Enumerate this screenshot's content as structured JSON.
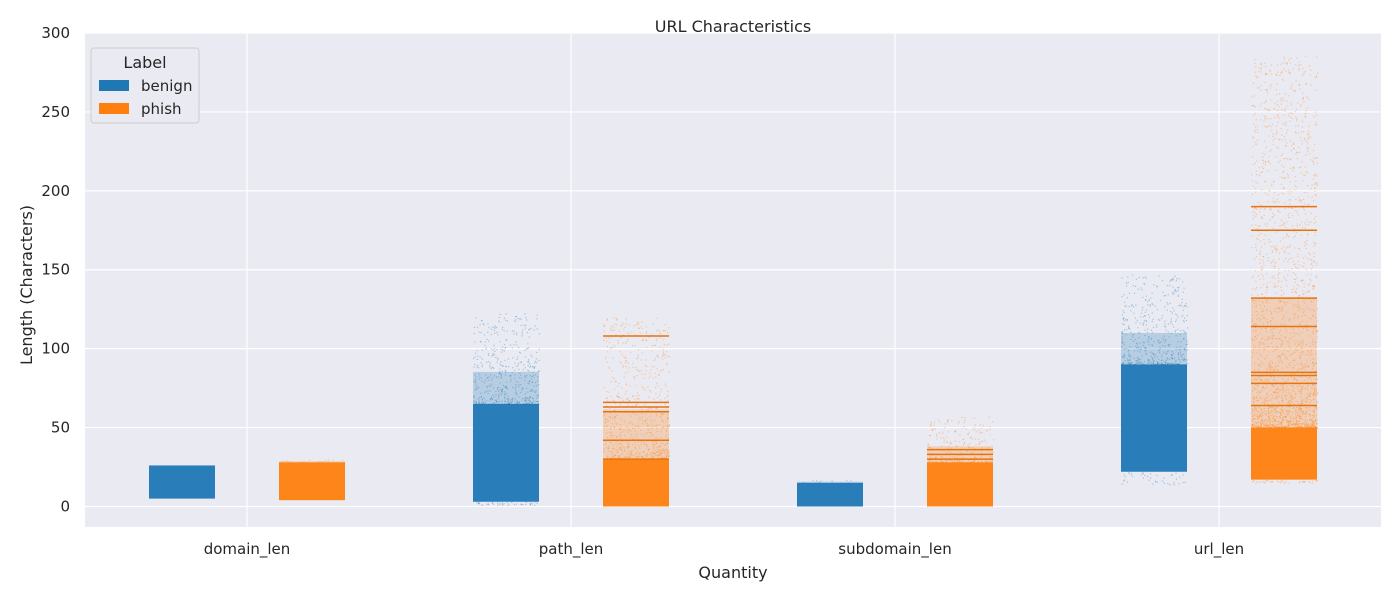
{
  "chart_data": {
    "type": "scatter",
    "title": "URL Characteristics",
    "xlabel": "Quantity",
    "ylabel": "Length (Characters)",
    "categories": [
      "domain_len",
      "path_len",
      "subdomain_len",
      "url_len"
    ],
    "ylim": [
      -13,
      300
    ],
    "yticks": [
      0,
      50,
      100,
      150,
      200,
      250,
      300
    ],
    "grid": true,
    "legend": {
      "title": "Label",
      "position": "top-left"
    },
    "series": [
      {
        "name": "benign",
        "color": "#1f77b4",
        "ranges": [
          {
            "category": "domain_len",
            "dense": [
              5,
              26
            ],
            "max": 26,
            "min": 5
          },
          {
            "category": "path_len",
            "dense": [
              3,
              65
            ],
            "max": 123,
            "min": 1
          },
          {
            "category": "subdomain_len",
            "dense": [
              0,
              15
            ],
            "max": 17,
            "min": 0
          },
          {
            "category": "url_len",
            "dense": [
              22,
              90
            ],
            "max": 147,
            "min": 14
          }
        ]
      },
      {
        "name": "phish",
        "color": "#ff7f0e",
        "ranges": [
          {
            "category": "domain_len",
            "dense": [
              4,
              28
            ],
            "max": 30,
            "min": 4
          },
          {
            "category": "path_len",
            "dense": [
              0,
              30
            ],
            "max": 120,
            "min": 0,
            "lines": [
              108,
              66,
              63,
              60,
              42,
              30
            ]
          },
          {
            "category": "subdomain_len",
            "dense": [
              0,
              28
            ],
            "max": 57,
            "min": 0,
            "lines": [
              36,
              33,
              30
            ]
          },
          {
            "category": "url_len",
            "dense": [
              17,
              50
            ],
            "max": 286,
            "min": 15,
            "lines": [
              190,
              175,
              132,
              114,
              85,
              83,
              78,
              64
            ]
          }
        ]
      }
    ]
  }
}
